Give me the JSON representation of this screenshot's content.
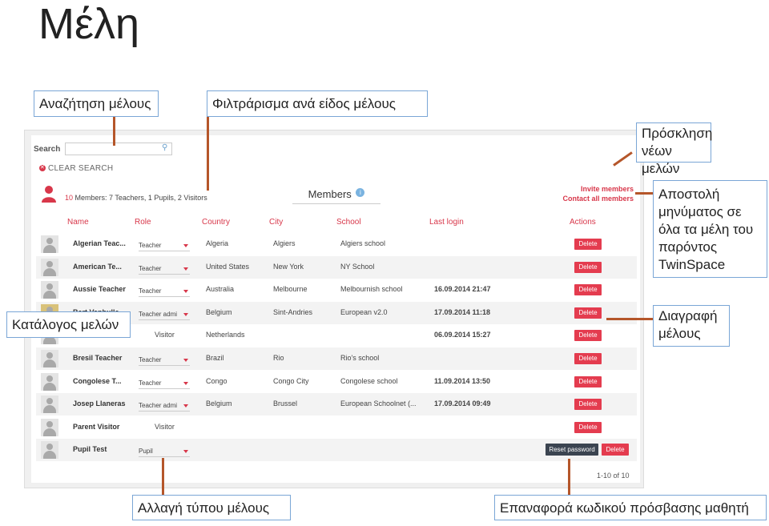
{
  "slide": {
    "title": "Μέλη"
  },
  "callouts": {
    "search_member": "Αναζήτηση μέλους",
    "filter_by_type": "Φιλτράρισμα ανά είδος μέλους",
    "invite_new": "Πρόσκληση νέων μελών",
    "message_all": "Αποστολή μηνύματος σε όλα τα μέλη του παρόντος TwinSpace",
    "member_list": "Κατάλογος μελών",
    "delete_member": "Διαγραφή μέλους",
    "change_type": "Αλλαγή τύπου μέλους",
    "reset_password": "Επαναφορά κωδικού πρόσβασης μαθητή"
  },
  "app": {
    "search_label": "Search",
    "search_value": "",
    "clear_search": "CLEAR SEARCH",
    "summary": {
      "count": "10",
      "text": "Members: 7 Teachers, 1 Pupils, 2 Visitors"
    },
    "heading": "Members",
    "invite_members": "Invite members",
    "contact_all_members": "Contact all members",
    "columns": {
      "name": "Name",
      "role": "Role",
      "country": "Country",
      "city": "City",
      "school": "School",
      "last_login": "Last login",
      "actions": "Actions"
    },
    "delete_label": "Delete",
    "reset_password_label": "Reset password",
    "pagination": "1-10 of 10",
    "rows": [
      {
        "name": "Algerian Teac...",
        "role": "Teacher",
        "country": "Algeria",
        "city": "Algiers",
        "school": "Algiers school",
        "last_login": ""
      },
      {
        "name": "American Te...",
        "role": "Teacher",
        "country": "United States",
        "city": "New York",
        "school": "NY School",
        "last_login": ""
      },
      {
        "name": "Aussie Teacher",
        "role": "Teacher",
        "country": "Australia",
        "city": "Melbourne",
        "school": "Melbournish school",
        "last_login": "16.09.2014 21:47"
      },
      {
        "name": "Bart Vanhulle",
        "role": "Teacher admi",
        "country": "Belgium",
        "city": "Sint-Andries",
        "school": "European v2.0",
        "last_login": "17.09.2014 11:18"
      },
      {
        "name": "",
        "role": "Visitor",
        "country": "Netherlands",
        "city": "",
        "school": "",
        "last_login": "06.09.2014 15:27"
      },
      {
        "name": "Bresil Teacher",
        "role": "Teacher",
        "country": "Brazil",
        "city": "Rio",
        "school": "Rio's school",
        "last_login": ""
      },
      {
        "name": "Congolese T...",
        "role": "Teacher",
        "country": "Congo",
        "city": "Congo City",
        "school": "Congolese school",
        "last_login": "11.09.2014 13:50"
      },
      {
        "name": "Josep Llaneras",
        "role": "Teacher admi",
        "country": "Belgium",
        "city": "Brussel",
        "school": "European Schoolnet (...",
        "last_login": "17.09.2014 09:49"
      },
      {
        "name": "Parent Visitor",
        "role": "Visitor",
        "country": "",
        "city": "",
        "school": "",
        "last_login": ""
      },
      {
        "name": "Pupil Test",
        "role": "Pupil",
        "country": "",
        "city": "",
        "school": "",
        "last_login": ""
      }
    ]
  }
}
